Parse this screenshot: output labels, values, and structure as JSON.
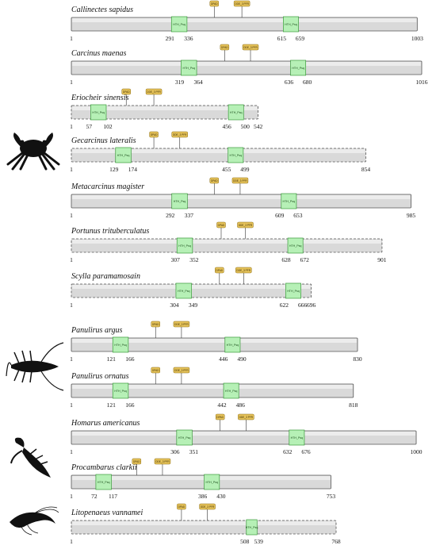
{
  "species": [
    {
      "name": "Callinectes sapidus",
      "length": 1003,
      "dashed": false,
      "domains": [
        {
          "label": "HTH_Psq",
          "start": 291,
          "end": 336
        },
        {
          "label": "HTH_Psq",
          "start": 615,
          "end": 659
        }
      ],
      "motifs": [
        {
          "label": "DPAD",
          "pos": 415
        },
        {
          "label": "DDE_3 PFR",
          "pos": 495
        }
      ]
    },
    {
      "name": "Carcinus maenas",
      "length": 1016,
      "dashed": false,
      "domains": [
        {
          "label": "HTH_Psq",
          "start": 319,
          "end": 364
        },
        {
          "label": "HTH_Psq",
          "start": 636,
          "end": 680
        }
      ],
      "motifs": [
        {
          "label": "DPAD",
          "pos": 445
        },
        {
          "label": "DDE_3 PFR",
          "pos": 520
        }
      ]
    },
    {
      "name": "Eriocheir sinensis",
      "length": 542,
      "dashed": true,
      "domains": [
        {
          "label": "HTH_Psq",
          "start": 57,
          "end": 102
        },
        {
          "label": "HTH_Psq",
          "start": 456,
          "end": 500
        }
      ],
      "motifs": [
        {
          "label": "DPAD",
          "pos": 160
        },
        {
          "label": "DDE_3 PFR",
          "pos": 240
        }
      ]
    },
    {
      "name": "Gecarcinus lateralis",
      "length": 854,
      "dashed": true,
      "domains": [
        {
          "label": "HTH_Psq",
          "start": 129,
          "end": 174
        },
        {
          "label": "HTH_Psq",
          "start": 455,
          "end": 499
        }
      ],
      "motifs": [
        {
          "label": "DPAD",
          "pos": 240
        },
        {
          "label": "DDE_3 PFR",
          "pos": 315
        }
      ]
    },
    {
      "name": "Metacarcinus magister",
      "length": 985,
      "dashed": false,
      "domains": [
        {
          "label": "HTH_Psq",
          "start": 292,
          "end": 337
        },
        {
          "label": "HTH_Psq",
          "start": 609,
          "end": 653
        }
      ],
      "motifs": [
        {
          "label": "DPAD",
          "pos": 415
        },
        {
          "label": "DDE_3 PFR",
          "pos": 490
        }
      ]
    },
    {
      "name": "Portunus trituberculatus",
      "length": 901,
      "dashed": true,
      "domains": [
        {
          "label": "HTH_Psq",
          "start": 307,
          "end": 352
        },
        {
          "label": "HTH_Psq",
          "start": 628,
          "end": 672
        }
      ],
      "motifs": [
        {
          "label": "DPAD",
          "pos": 435
        },
        {
          "label": "DDE_3 PFR",
          "pos": 505
        }
      ]
    },
    {
      "name": "Scylla paramamosain",
      "length": 696,
      "dashed": true,
      "domains": [
        {
          "label": "HTH_Psq",
          "start": 304,
          "end": 349
        },
        {
          "label": "HTH_Psq",
          "start": 622,
          "end": 666
        }
      ],
      "motifs": [
        {
          "label": "DPAD",
          "pos": 430
        },
        {
          "label": "DDE_3 PFR",
          "pos": 500
        }
      ]
    },
    {
      "name": "Panulirus argus",
      "length": 830,
      "dashed": false,
      "domains": [
        {
          "label": "HTH_Psq",
          "start": 121,
          "end": 166
        },
        {
          "label": "HTH_Psq",
          "start": 446,
          "end": 490
        }
      ],
      "motifs": [
        {
          "label": "DPAD",
          "pos": 245
        },
        {
          "label": "DDE_3 PFR",
          "pos": 320
        }
      ]
    },
    {
      "name": "Panulirus ornatus",
      "length": 818,
      "dashed": false,
      "domains": [
        {
          "label": "HTH_Psq",
          "start": 121,
          "end": 166
        },
        {
          "label": "HTH_Psq",
          "start": 442,
          "end": 486
        }
      ],
      "motifs": [
        {
          "label": "DPAD",
          "pos": 245
        },
        {
          "label": "DDE_3 PFR",
          "pos": 320
        }
      ]
    },
    {
      "name": "Homarus americanus",
      "length": 1000,
      "dashed": false,
      "domains": [
        {
          "label": "HTH_Psq",
          "start": 306,
          "end": 351
        },
        {
          "label": "HTH_Psq",
          "start": 632,
          "end": 676
        }
      ],
      "motifs": [
        {
          "label": "DPAD",
          "pos": 432
        },
        {
          "label": "DDE_3 PFR",
          "pos": 507
        }
      ]
    },
    {
      "name": "Procambarus clarkii",
      "length": 753,
      "dashed": false,
      "domains": [
        {
          "label": "HTH_Psq",
          "start": 72,
          "end": 117
        },
        {
          "label": "HTH_Psq",
          "start": 386,
          "end": 430
        }
      ],
      "motifs": [
        {
          "label": "DPAD",
          "pos": 190
        },
        {
          "label": "DDE_3 PFR",
          "pos": 265
        }
      ]
    },
    {
      "name": "Litopenaeus vannamei",
      "length": 768,
      "dashed": true,
      "domains": [
        {
          "label": "HTH_Psq",
          "start": 508,
          "end": 539
        }
      ],
      "motifs": [
        {
          "label": "DPAD",
          "pos": 320
        },
        {
          "label": "DDE_3 PFR",
          "pos": 395
        }
      ]
    }
  ],
  "scale_max": 1016,
  "colors": {
    "bar_fill": "#d9d9d9",
    "bar_stroke": "#555555",
    "domain_fill": "#b6f0b6",
    "domain_stroke": "#3a9a3a",
    "motif_fill": "#e6c35a",
    "motif_stroke": "#8a6a10"
  },
  "silhouettes": [
    {
      "icon": "crab-icon"
    },
    {
      "icon": "spiny-lobster-icon"
    },
    {
      "icon": "lobster-icon"
    },
    {
      "icon": "shrimp-icon"
    }
  ]
}
